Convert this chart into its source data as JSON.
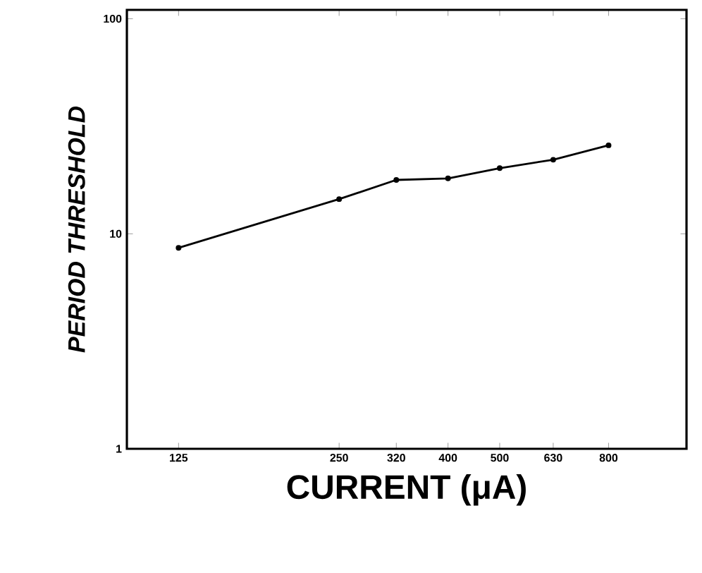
{
  "chart_data": {
    "type": "line",
    "xlabel": "CURRENT (μA)",
    "ylabel": "*PERIOD   THRESHOLD*",
    "log": "xy",
    "x": [
      125,
      250,
      320,
      400,
      500,
      630,
      800
    ],
    "series": [
      {
        "color": "#000000",
        "values": [
          8.6,
          14.5,
          17.8,
          18.1,
          20.2,
          22.1,
          25.8
        ]
      }
    ],
    "xlim": [
      100,
      1120
    ],
    "ylim": [
      1,
      110
    ],
    "xticks": [
      125,
      250,
      320,
      400,
      500,
      630,
      800
    ],
    "yticks": [
      1,
      10,
      100
    ],
    "marker": "circle",
    "line_style": "solid"
  }
}
